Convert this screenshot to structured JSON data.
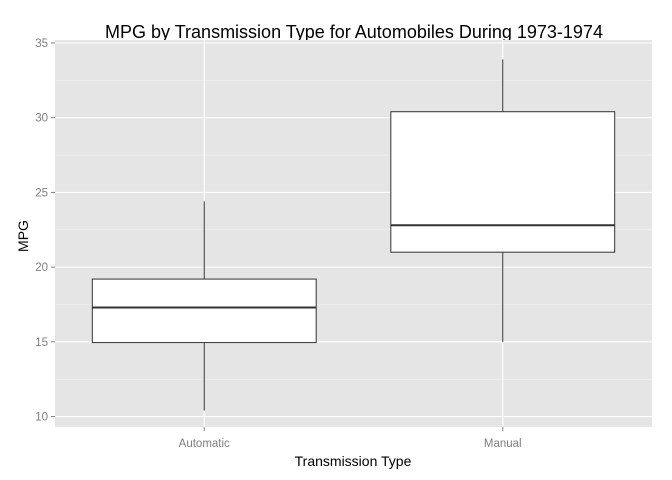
{
  "chart_data": {
    "type": "boxplot",
    "title": "MPG by Transmission Type for Automobiles During 1973-1974",
    "xlabel": "Transmission Type",
    "ylabel": "MPG",
    "ylim": [
      9.3,
      35.2
    ],
    "yticks": [
      10,
      15,
      20,
      25,
      30,
      35
    ],
    "grid": true,
    "categories": [
      "Automatic",
      "Manual"
    ],
    "boxes": [
      {
        "category": "Automatic",
        "min": 10.4,
        "q1": 14.95,
        "median": 17.3,
        "q3": 19.2,
        "max": 24.4
      },
      {
        "category": "Manual",
        "min": 15.0,
        "q1": 21.0,
        "median": 22.8,
        "q3": 30.4,
        "max": 33.9
      }
    ],
    "colors": {
      "panel": "#e5e5e5",
      "grid_major": "#ffffff",
      "grid_minor": "#f2f2f2",
      "box_fill": "#ffffff",
      "box_line": "#333333",
      "tick_text": "#7f7f7f"
    }
  }
}
